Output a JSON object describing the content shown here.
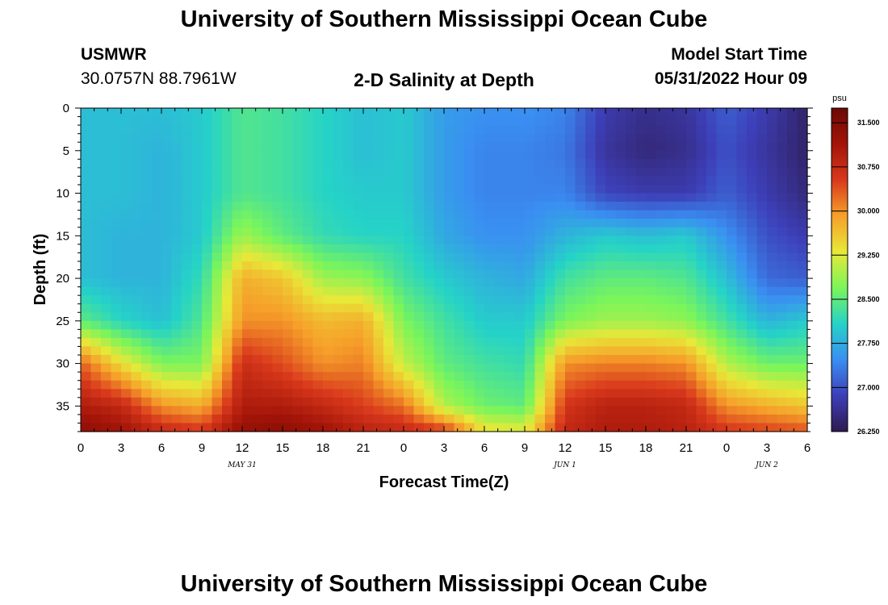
{
  "header": {
    "title": "University of Southern Mississippi Ocean Cube",
    "station": "USMWR",
    "coords": "30.0757N  88.7961W",
    "plot_title": "2-D Salinity at Depth",
    "model_start_label": "Model Start Time",
    "model_start_value": "05/31/2022 Hour 09"
  },
  "footer": {
    "title": "University of Southern Mississippi Ocean Cube"
  },
  "colors": {
    "ramp": [
      "#2e1a4f",
      "#3d3fb8",
      "#3a8ef2",
      "#25d3c7",
      "#7bf55a",
      "#e8e838",
      "#f6a02a",
      "#d9391c",
      "#a31408",
      "#6a0a04"
    ]
  },
  "chart_data": {
    "type": "heatmap",
    "title": "2-D Salinity at Depth",
    "xlabel": "Forecast Time(Z)",
    "ylabel": "Depth (ft)",
    "x_tick_labels": [
      "0",
      "3",
      "6",
      "9",
      "12",
      "15",
      "18",
      "21",
      "0",
      "3",
      "6",
      "9",
      "12",
      "15",
      "18",
      "21",
      "0",
      "3",
      "6"
    ],
    "date_labels": [
      {
        "label": "MAY 31",
        "x_index": 4
      },
      {
        "label": "JUN 1",
        "x_index": 12
      },
      {
        "label": "JUN 2",
        "x_index": 17
      }
    ],
    "y_ticks": [
      0,
      5,
      10,
      15,
      20,
      25,
      30,
      35
    ],
    "ylim": [
      38,
      0
    ],
    "x_range_hours": [
      0,
      54
    ],
    "colorbar": {
      "unit": "psu",
      "range": [
        26.25,
        31.75
      ],
      "tick_labels": [
        "31.500",
        "30.750",
        "30.000",
        "29.250",
        "28.500",
        "27.750",
        "27.000",
        "26.250"
      ]
    },
    "depths_ft": [
      0,
      5,
      10,
      15,
      20,
      25,
      30,
      35,
      38
    ],
    "hours": [
      0,
      3,
      6,
      9,
      12,
      15,
      18,
      21,
      24,
      27,
      30,
      33,
      36,
      39,
      42,
      45,
      48,
      51,
      54
    ],
    "salinity_psu": [
      [
        27.9,
        27.9,
        27.9,
        28.0,
        28.4,
        28.3,
        28.1,
        27.9,
        28.0,
        27.6,
        27.5,
        27.5,
        27.4,
        26.8,
        26.6,
        26.7,
        27.1,
        26.8,
        26.4
      ],
      [
        27.9,
        27.9,
        27.8,
        28.0,
        28.4,
        28.3,
        28.1,
        27.9,
        28.0,
        27.6,
        27.4,
        27.4,
        27.3,
        26.7,
        26.5,
        26.6,
        27.0,
        26.7,
        26.4
      ],
      [
        27.9,
        27.9,
        27.8,
        28.0,
        28.4,
        28.3,
        28.1,
        28.0,
        28.0,
        27.6,
        27.4,
        27.4,
        27.4,
        26.9,
        26.8,
        26.8,
        27.1,
        26.8,
        26.5
      ],
      [
        27.9,
        27.8,
        27.8,
        28.0,
        28.9,
        28.5,
        28.2,
        28.1,
        28.1,
        27.7,
        27.5,
        27.5,
        27.8,
        28.0,
        27.9,
        28.0,
        27.5,
        27.0,
        26.8
      ],
      [
        27.9,
        27.8,
        27.8,
        28.2,
        29.8,
        29.6,
        28.9,
        28.8,
        28.3,
        28.0,
        27.8,
        27.7,
        28.3,
        28.5,
        28.5,
        28.4,
        27.9,
        27.2,
        27.1
      ],
      [
        28.5,
        28.1,
        27.9,
        28.4,
        30.0,
        30.0,
        29.7,
        29.8,
        28.7,
        28.3,
        28.0,
        28.0,
        28.7,
        28.9,
        28.9,
        28.8,
        28.3,
        27.8,
        28.0
      ],
      [
        30.3,
        29.4,
        28.7,
        28.7,
        30.7,
        30.4,
        30.0,
        30.1,
        29.1,
        28.5,
        28.3,
        28.2,
        30.0,
        30.1,
        30.1,
        30.0,
        29.0,
        28.6,
        28.6
      ],
      [
        31.0,
        30.8,
        30.0,
        29.8,
        31.0,
        31.0,
        30.8,
        30.5,
        30.2,
        29.0,
        28.6,
        28.5,
        30.6,
        30.9,
        30.9,
        30.8,
        30.0,
        29.8,
        29.6
      ],
      [
        31.4,
        31.2,
        30.8,
        30.6,
        31.3,
        31.4,
        31.2,
        30.9,
        30.8,
        30.6,
        29.4,
        29.3,
        30.8,
        31.0,
        31.0,
        30.9,
        30.6,
        30.5,
        30.4
      ]
    ]
  }
}
